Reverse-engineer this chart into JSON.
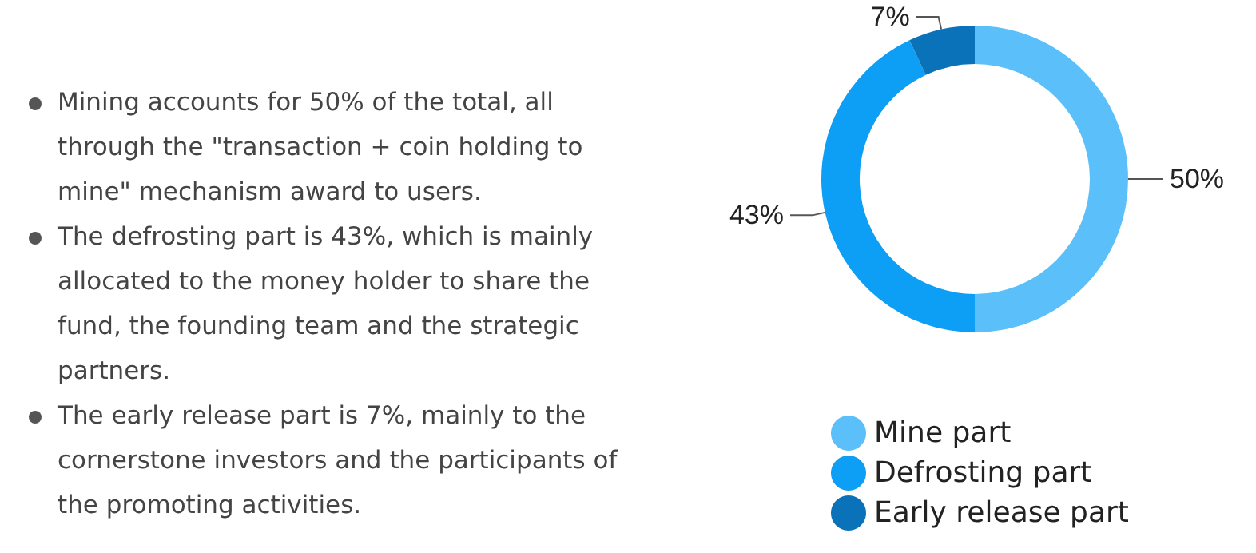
{
  "chart_data": {
    "type": "donut",
    "categories": [
      "Mine part",
      "Defrosting part",
      "Early release part"
    ],
    "values": [
      50,
      43,
      7
    ],
    "colors": [
      "#5bc0fa",
      "#0d9ef5",
      "#0a72b8"
    ],
    "value_labels": [
      "50%",
      "43%",
      "7%"
    ],
    "legend": "bottom",
    "annotations": [
      "Mining accounts for 50% of the total, all through the \"transaction + coin holding to mine\" mechanism award to users.",
      "The defrosting part is 43%, which is mainly allocated to the money holder to share the fund, the founding team and the strategic partners.",
      "The early release part is 7%, mainly to the cornerstone investors and the participants of the promoting activities."
    ]
  }
}
